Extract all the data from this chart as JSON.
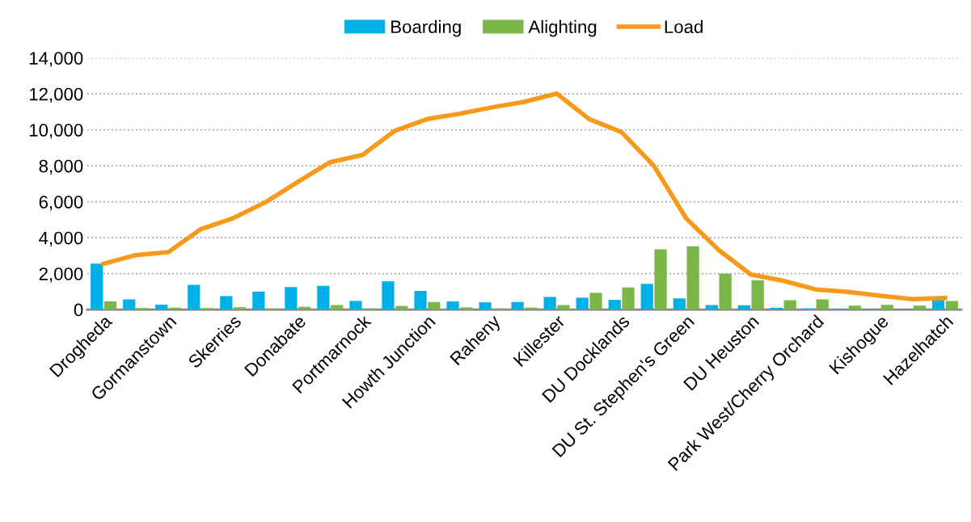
{
  "chart_data": {
    "type": "bar",
    "categories": [
      "Drogheda",
      null,
      "Gormanstown",
      null,
      "Skerries",
      null,
      "Donabate",
      null,
      "Portmarnock",
      null,
      "Howth Junction",
      null,
      "Raheny",
      null,
      "Killester",
      null,
      "DU Docklands",
      null,
      "DU St. Stephen's Green",
      null,
      "DU Heuston",
      null,
      "Park West/Cherry Orchard",
      null,
      "Kishogue",
      null,
      "Hazelhatch"
    ],
    "series": [
      {
        "name": "Boarding",
        "color": "#00b0e6",
        "values": [
          2550,
          570,
          270,
          1370,
          750,
          1000,
          1250,
          1320,
          480,
          1570,
          1040,
          450,
          400,
          420,
          700,
          660,
          540,
          1430,
          620,
          250,
          240,
          100,
          60,
          50,
          30,
          0,
          620
        ]
      },
      {
        "name": "Alighting",
        "color": "#7ab648",
        "values": [
          450,
          80,
          100,
          80,
          130,
          60,
          150,
          250,
          60,
          200,
          420,
          120,
          60,
          110,
          250,
          930,
          1230,
          3350,
          3520,
          2000,
          1630,
          520,
          570,
          220,
          260,
          220,
          480
        ]
      },
      {
        "name": "Load",
        "type": "line",
        "color": "#f79a1b",
        "values": [
          2550,
          3030,
          3200,
          4470,
          5080,
          5970,
          7100,
          8200,
          8600,
          9950,
          10600,
          10900,
          11250,
          11560,
          12020,
          10600,
          9880,
          8000,
          5070,
          3320,
          1950,
          1600,
          1120,
          980,
          770,
          580,
          650
        ]
      }
    ],
    "ylim": [
      0,
      14000
    ],
    "yticks": [
      {
        "value": 0,
        "label": "0"
      },
      {
        "value": 2000,
        "label": "2,000"
      },
      {
        "value": 4000,
        "label": "4,000"
      },
      {
        "value": 6000,
        "label": "6,000"
      },
      {
        "value": 8000,
        "label": "8,000"
      },
      {
        "value": 10000,
        "label": "10,000"
      },
      {
        "value": 12000,
        "label": "12,000"
      },
      {
        "value": 14000,
        "label": "14,000"
      }
    ],
    "grid": "y",
    "legend": "top",
    "marker": "none",
    "line_style": "solid"
  }
}
